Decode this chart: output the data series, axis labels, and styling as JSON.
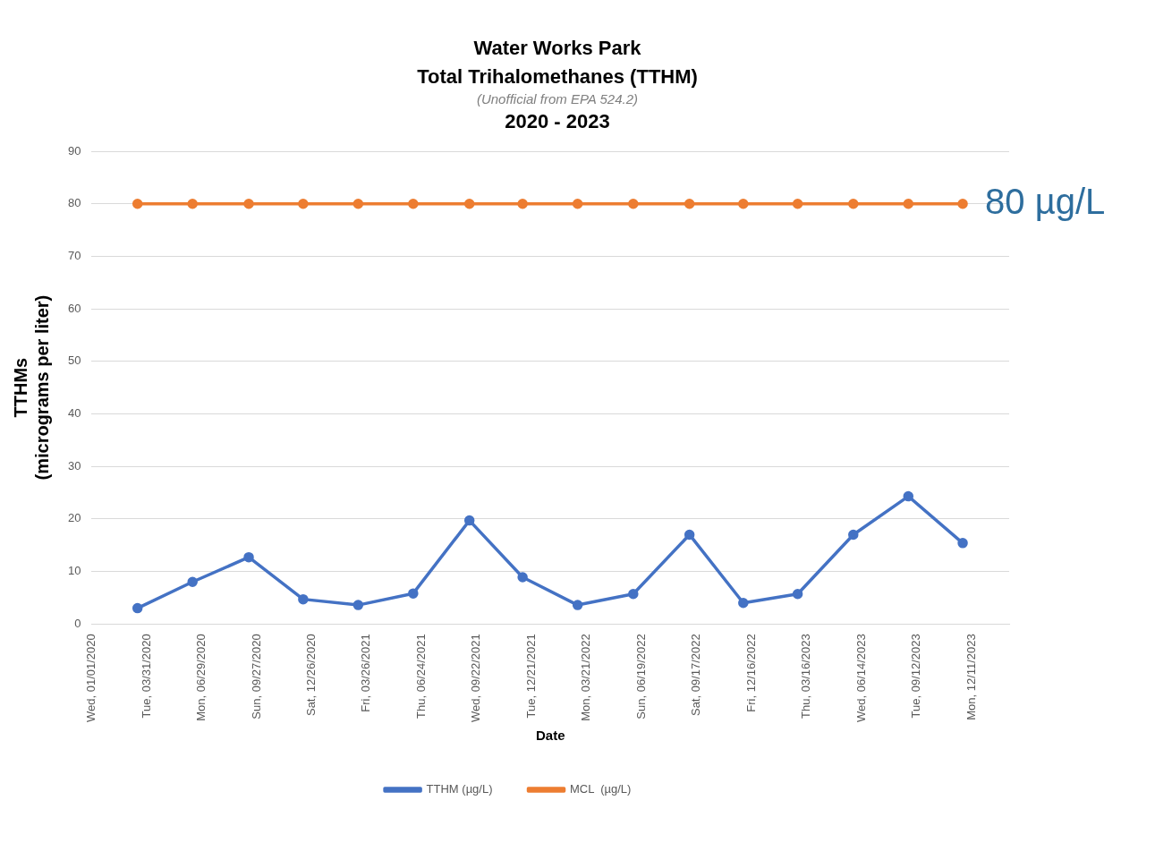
{
  "chart_data": {
    "type": "line",
    "title": "Water Works Park\nTotal Trihalomethanes (TTHM)",
    "subtitle": "(Unofficial  from EPA 524.2)",
    "annotations": [
      "2020 - 2023",
      {
        "text": "80 µg/L",
        "x": "2023-11-26",
        "y": 80
      }
    ],
    "xlabel": "Date",
    "ylabel": "TTHMs\n(micrograms per liter)",
    "x": [
      "2020-03-16",
      "2020-06-14",
      "2020-09-14",
      "2020-12-12",
      "2021-03-12",
      "2021-06-10",
      "2021-09-10",
      "2021-12-06",
      "2022-03-06",
      "2022-06-05",
      "2022-09-05",
      "2022-12-02",
      "2023-03-01",
      "2023-05-31",
      "2023-08-29",
      "2023-11-26"
    ],
    "series": [
      {
        "name": "TTHM (µg/L)",
        "color": "#4472c4",
        "values": [
          3.0,
          8.0,
          12.7,
          4.7,
          3.6,
          5.8,
          19.7,
          8.9,
          3.6,
          5.7,
          17.0,
          4.0,
          5.7,
          17.0,
          24.3,
          15.4
        ]
      },
      {
        "name": "MCL  (µg/L)",
        "color": "#ed7d31",
        "values": [
          80,
          80,
          80,
          80,
          80,
          80,
          80,
          80,
          80,
          80,
          80,
          80,
          80,
          80,
          80,
          80
        ]
      }
    ],
    "xlim": [
      "2020-01-01",
      "2024-02-10"
    ],
    "xticks": [
      {
        "value": "2020-01-01",
        "label": "Wed, 01/01/2020"
      },
      {
        "value": "2020-03-31",
        "label": "Tue, 03/31/2020"
      },
      {
        "value": "2020-06-29",
        "label": "Mon, 06/29/2020"
      },
      {
        "value": "2020-09-27",
        "label": "Sun, 09/27/2020"
      },
      {
        "value": "2020-12-26",
        "label": "Sat, 12/26/2020"
      },
      {
        "value": "2021-03-26",
        "label": "Fri, 03/26/2021"
      },
      {
        "value": "2021-06-24",
        "label": "Thu, 06/24/2021"
      },
      {
        "value": "2021-09-22",
        "label": "Wed, 09/22/2021"
      },
      {
        "value": "2021-12-21",
        "label": "Tue, 12/21/2021"
      },
      {
        "value": "2022-03-21",
        "label": "Mon, 03/21/2022"
      },
      {
        "value": "2022-06-19",
        "label": "Sun, 06/19/2022"
      },
      {
        "value": "2022-09-17",
        "label": "Sat, 09/17/2022"
      },
      {
        "value": "2022-12-16",
        "label": "Fri, 12/16/2022"
      },
      {
        "value": "2023-03-16",
        "label": "Thu, 03/16/2023"
      },
      {
        "value": "2023-06-14",
        "label": "Wed, 06/14/2023"
      },
      {
        "value": "2023-09-12",
        "label": "Tue, 09/12/2023"
      },
      {
        "value": "2023-12-11",
        "label": "Mon, 12/11/2023"
      }
    ],
    "ylim": [
      0,
      90
    ],
    "yticks": [
      0,
      10,
      20,
      30,
      40,
      50,
      60,
      70,
      80,
      90
    ],
    "grid": "y",
    "legend": "bottom",
    "marker": "circle",
    "line_style": "solid"
  }
}
